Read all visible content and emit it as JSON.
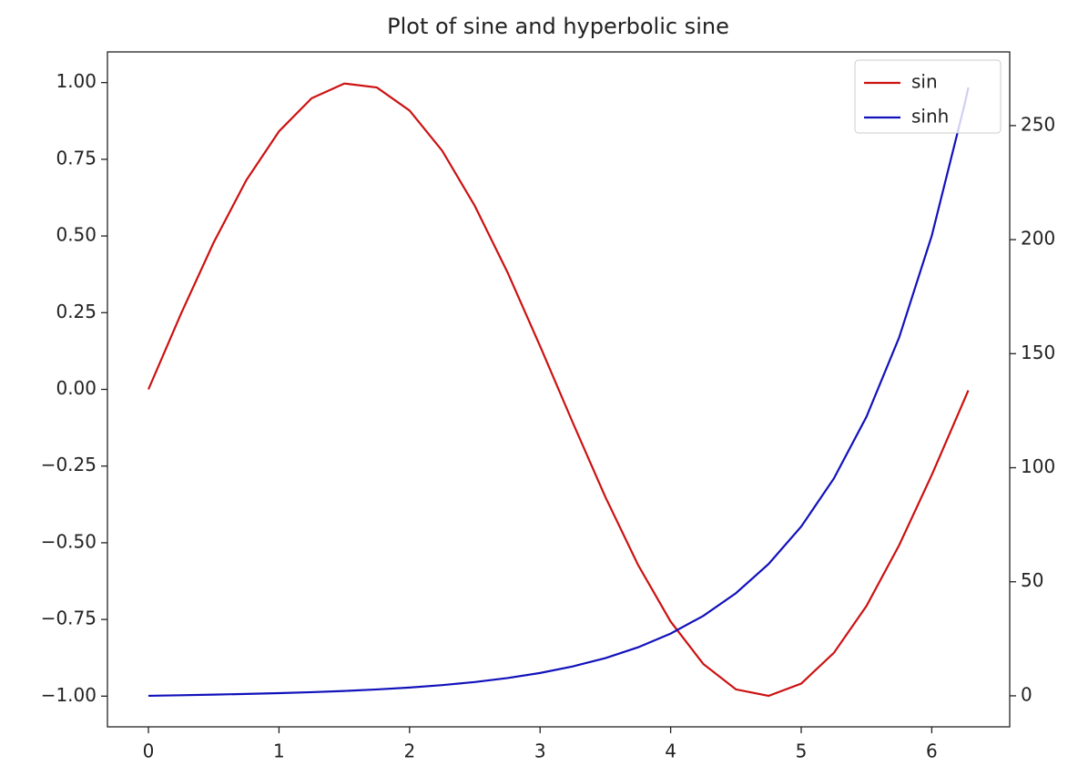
{
  "chart_data": {
    "type": "line",
    "title": "Plot of sine and hyperbolic sine",
    "x": [
      0,
      0.25,
      0.5,
      0.75,
      1,
      1.25,
      1.5,
      1.75,
      2,
      2.25,
      2.5,
      2.75,
      3,
      3.25,
      3.5,
      3.75,
      4,
      4.25,
      4.5,
      4.75,
      5,
      5.25,
      5.5,
      5.75,
      6,
      6.25,
      6.28
    ],
    "series": [
      {
        "name": "sin",
        "color": "#cc1111",
        "values": [
          0,
          0.247,
          0.479,
          0.682,
          0.841,
          0.949,
          0.997,
          0.984,
          0.909,
          0.778,
          0.598,
          0.382,
          0.141,
          -0.108,
          -0.351,
          -0.572,
          -0.757,
          -0.895,
          -0.978,
          -0.999,
          -0.959,
          -0.859,
          -0.706,
          -0.508,
          -0.279,
          -0.033,
          -0.003
        ]
      },
      {
        "name": "sinh",
        "color": "#1111bb",
        "axis": "y2",
        "values": [
          0,
          0.253,
          0.521,
          0.822,
          1.175,
          1.602,
          2.129,
          2.79,
          3.627,
          4.691,
          6.05,
          7.789,
          10.018,
          12.876,
          16.543,
          21.249,
          27.29,
          35.046,
          45.003,
          57.781,
          74.203,
          95.281,
          122.344,
          157.09,
          201.713,
          259.0,
          266.7
        ]
      }
    ],
    "xlim": [
      -0.314,
      6.597
    ],
    "xticks": [
      0,
      1,
      2,
      3,
      4,
      5,
      6
    ],
    "ylim": [
      -1.1,
      1.1
    ],
    "yticks": [
      {
        "value": -1,
        "label": "−1.00"
      },
      {
        "value": -0.75,
        "label": "−0.75"
      },
      {
        "value": -0.5,
        "label": "−0.50"
      },
      {
        "value": -0.25,
        "label": "−0.25"
      },
      {
        "value": 0,
        "label": "0.00"
      },
      {
        "value": 0.25,
        "label": "0.25"
      },
      {
        "value": 0.5,
        "label": "0.50"
      },
      {
        "value": 0.75,
        "label": "0.75"
      },
      {
        "value": 1,
        "label": "1.00"
      }
    ],
    "y2lim": [
      -13.6,
      282.3
    ],
    "y2ticks": [
      0,
      50,
      100,
      150,
      200,
      250
    ],
    "legend": "upper right",
    "grid": false
  }
}
